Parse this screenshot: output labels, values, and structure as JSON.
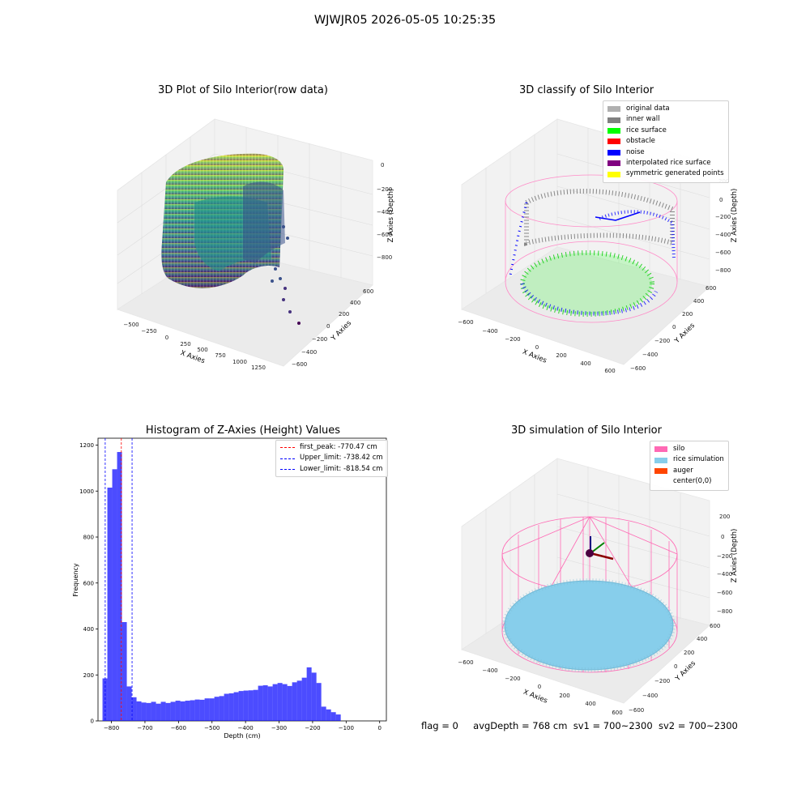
{
  "suptitle": "WJWJR05 2026-05-05 10:25:35",
  "panel_raw": {
    "title": "3D Plot of Silo Interior(row data)",
    "xlabel": "X Axies",
    "ylabel": "Y Axies",
    "zlabel": "Z Axies (Depth)",
    "x_ticks": [
      "−500",
      "−250",
      "0",
      "250",
      "500",
      "750",
      "1000",
      "1250"
    ],
    "y_ticks": [
      "−600",
      "−400",
      "−200",
      "0",
      "200",
      "400",
      "600"
    ],
    "z_ticks": [
      "0",
      "−200",
      "−400",
      "−600",
      "−800"
    ]
  },
  "panel_classify": {
    "title": "3D classify of Silo Interior",
    "xlabel": "X Axies",
    "ylabel": "Y Axies",
    "zlabel": "Z Axies (Depth)",
    "x_ticks": [
      "−600",
      "−400",
      "−200",
      "0",
      "200",
      "400",
      "600"
    ],
    "y_ticks": [
      "−600",
      "−400",
      "−200",
      "0",
      "200",
      "400",
      "600"
    ],
    "z_ticks": [
      "200",
      "0",
      "−200",
      "−400",
      "−600",
      "−800"
    ],
    "legend": [
      {
        "label": "original data",
        "color": "#b0b0b0"
      },
      {
        "label": "inner wall",
        "color": "#808080"
      },
      {
        "label": "rice surface",
        "color": "#00ff00"
      },
      {
        "label": "obstacle",
        "color": "#ff0000"
      },
      {
        "label": "noise",
        "color": "#0000ff"
      },
      {
        "label": "interpolated rice surface",
        "color": "#800080"
      },
      {
        "label": "symmetric generated points",
        "color": "#ffff00"
      }
    ]
  },
  "panel_sim": {
    "title": "3D simulation of Silo Interior",
    "xlabel": "X Axies",
    "ylabel": "Y Axies",
    "zlabel": "Z Axies (Depth)",
    "x_ticks": [
      "−600",
      "−400",
      "−200",
      "0",
      "200",
      "400",
      "600"
    ],
    "y_ticks": [
      "−600",
      "−400",
      "−200",
      "0",
      "200",
      "400",
      "600"
    ],
    "z_ticks": [
      "200",
      "0",
      "−200",
      "−400",
      "−600",
      "−800"
    ],
    "legend": [
      {
        "label": "silo",
        "color": "#ff69b4"
      },
      {
        "label": "rice simulation",
        "color": "#87ceeb"
      },
      {
        "label": "auger",
        "color": "#ff4500"
      },
      {
        "label": "center(0,0)",
        "color": "#ffffff"
      }
    ]
  },
  "footer": {
    "flag": "flag = 0",
    "avg": "avgDepth = 768 cm",
    "sv1": "sv1 = 700~2300",
    "sv2": "sv2 = 700~2300"
  },
  "chart_data": [
    {
      "type": "bar",
      "title": "Histogram of Z-Axies (Height) Values",
      "xlabel": "Depth (cm)",
      "ylabel": "Frequency",
      "xlim": [
        -840,
        20
      ],
      "ylim": [
        0,
        1230
      ],
      "bar_color": "#0000ff",
      "bin_width": 14.5,
      "bin_start": -826.6,
      "values": [
        185,
        1015,
        1095,
        1170,
        430,
        150,
        103,
        85,
        80,
        78,
        83,
        75,
        83,
        78,
        83,
        88,
        85,
        88,
        90,
        93,
        92,
        98,
        98,
        105,
        108,
        118,
        120,
        125,
        130,
        132,
        133,
        135,
        153,
        155,
        150,
        160,
        165,
        160,
        152,
        168,
        175,
        188,
        233,
        210,
        165,
        62,
        50,
        38,
        28
      ],
      "x_ticks": [
        -800,
        -700,
        -600,
        -500,
        -400,
        -300,
        -200,
        -100,
        0
      ],
      "y_ticks": [
        0,
        200,
        400,
        600,
        800,
        1000,
        1200
      ],
      "x_tick_labels": [
        "−800",
        "−700",
        "−600",
        "−500",
        "−400",
        "−300",
        "−200",
        "−100",
        "0"
      ],
      "y_tick_labels": [
        "0",
        "200",
        "400",
        "600",
        "800",
        "1000",
        "1200"
      ],
      "lines": [
        {
          "label": "first_peak: -770.47 cm",
          "x": -770.47,
          "color": "#ff0000"
        },
        {
          "label": "Upper_limit: -738.42 cm",
          "x": -738.42,
          "color": "#0000ff"
        },
        {
          "label": "Lower_limit: -818.54 cm",
          "x": -818.54,
          "color": "#0000ff"
        }
      ],
      "legend_position": "top-right"
    }
  ]
}
